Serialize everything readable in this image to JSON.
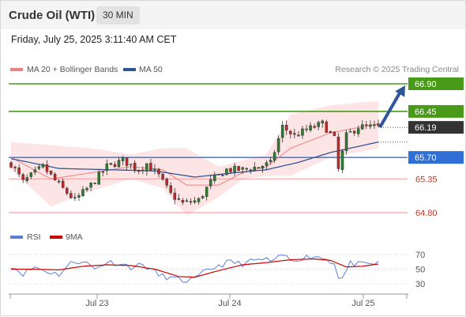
{
  "header": {
    "title": "Crude Oil (WTI)",
    "timeframe": "30 MIN",
    "timestamp": "Friday, July 25, 2025 3:11:40 AM CET"
  },
  "legend": {
    "ma20_bb": "MA 20 + Bollinger Bands",
    "ma50": "MA 50",
    "credit": "Research © 2025 Trading Central",
    "rsi": "RSI",
    "rsi_ma": "9MA"
  },
  "colors": {
    "up": "#2e7d32",
    "down": "#c62828",
    "bollinger_fill": "#fde0e0",
    "ma20": "#f08080",
    "ma50": "#2f5597",
    "resistance": "#4a9a1a",
    "pivot": "#2f6fd6",
    "support": "#f4a3a3",
    "arrow": "#2f5597",
    "last_price": "#333333",
    "rsi": "#5b7fd6",
    "rsi_ma": "#cc0000"
  },
  "chart_data": [
    {
      "type": "candlestick",
      "title": "Crude Oil (WTI)",
      "timeframe": "30 MIN",
      "x_tick_labels": [
        "Jul 23",
        "Jul 24",
        "Jul 25"
      ],
      "ylim": [
        64.6,
        67.1
      ],
      "levels": [
        {
          "label": "66.90",
          "value": 66.9,
          "kind": "resistance"
        },
        {
          "label": "66.45",
          "value": 66.45,
          "kind": "resistance"
        },
        {
          "label": "66.19",
          "value": 66.19,
          "kind": "last"
        },
        {
          "label": "65.70",
          "value": 65.7,
          "kind": "pivot"
        },
        {
          "label": "65.35",
          "value": 65.35,
          "kind": "support"
        },
        {
          "label": "64.80",
          "value": 64.8,
          "kind": "support"
        }
      ],
      "anchors": [
        {
          "i": 0,
          "p": 65.6
        },
        {
          "i": 3,
          "p": 65.3
        },
        {
          "i": 8,
          "p": 65.55
        },
        {
          "i": 12,
          "p": 65.25
        },
        {
          "i": 16,
          "p": 65.0
        },
        {
          "i": 20,
          "p": 65.25
        },
        {
          "i": 24,
          "p": 65.55
        },
        {
          "i": 28,
          "p": 65.65
        },
        {
          "i": 32,
          "p": 65.5
        },
        {
          "i": 34,
          "p": 65.6
        },
        {
          "i": 37,
          "p": 65.4
        },
        {
          "i": 40,
          "p": 65.1
        },
        {
          "i": 43,
          "p": 64.95
        },
        {
          "i": 47,
          "p": 65.0
        },
        {
          "i": 50,
          "p": 65.3
        },
        {
          "i": 54,
          "p": 65.5
        },
        {
          "i": 58,
          "p": 65.5
        },
        {
          "i": 62,
          "p": 65.55
        },
        {
          "i": 65,
          "p": 65.6
        },
        {
          "i": 68,
          "p": 66.2
        },
        {
          "i": 71,
          "p": 66.05
        },
        {
          "i": 74,
          "p": 66.15
        },
        {
          "i": 78,
          "p": 66.25
        },
        {
          "i": 81,
          "p": 66.0
        },
        {
          "i": 82,
          "p": 65.5
        },
        {
          "i": 84,
          "p": 66.05
        },
        {
          "i": 87,
          "p": 66.2
        },
        {
          "i": 92,
          "p": 66.19
        }
      ],
      "bollinger": {
        "upper": [
          {
            "i": 0,
            "p": 65.95
          },
          {
            "i": 10,
            "p": 65.9
          },
          {
            "i": 20,
            "p": 65.85
          },
          {
            "i": 30,
            "p": 65.75
          },
          {
            "i": 38,
            "p": 65.85
          },
          {
            "i": 44,
            "p": 65.85
          },
          {
            "i": 52,
            "p": 65.55
          },
          {
            "i": 58,
            "p": 65.65
          },
          {
            "i": 64,
            "p": 65.75
          },
          {
            "i": 70,
            "p": 66.4
          },
          {
            "i": 80,
            "p": 66.55
          },
          {
            "i": 92,
            "p": 66.62
          }
        ],
        "lower": [
          {
            "i": 0,
            "p": 65.5
          },
          {
            "i": 10,
            "p": 64.9
          },
          {
            "i": 20,
            "p": 65.15
          },
          {
            "i": 30,
            "p": 65.35
          },
          {
            "i": 38,
            "p": 65.2
          },
          {
            "i": 44,
            "p": 64.75
          },
          {
            "i": 52,
            "p": 65.05
          },
          {
            "i": 58,
            "p": 65.35
          },
          {
            "i": 64,
            "p": 65.4
          },
          {
            "i": 70,
            "p": 65.4
          },
          {
            "i": 80,
            "p": 65.7
          },
          {
            "i": 92,
            "p": 65.85
          }
        ],
        "ma20": [
          {
            "i": 0,
            "p": 65.7
          },
          {
            "i": 10,
            "p": 65.35
          },
          {
            "i": 20,
            "p": 65.45
          },
          {
            "i": 30,
            "p": 65.55
          },
          {
            "i": 38,
            "p": 65.5
          },
          {
            "i": 44,
            "p": 65.25
          },
          {
            "i": 52,
            "p": 65.25
          },
          {
            "i": 58,
            "p": 65.45
          },
          {
            "i": 64,
            "p": 65.55
          },
          {
            "i": 70,
            "p": 65.85
          },
          {
            "i": 80,
            "p": 66.1
          },
          {
            "i": 92,
            "p": 66.25
          }
        ]
      },
      "ma50": [
        {
          "i": 0,
          "p": 65.68
        },
        {
          "i": 12,
          "p": 65.52
        },
        {
          "i": 24,
          "p": 65.5
        },
        {
          "i": 36,
          "p": 65.48
        },
        {
          "i": 46,
          "p": 65.38
        },
        {
          "i": 56,
          "p": 65.45
        },
        {
          "i": 64,
          "p": 65.5
        },
        {
          "i": 72,
          "p": 65.62
        },
        {
          "i": 80,
          "p": 65.78
        },
        {
          "i": 92,
          "p": 65.95
        }
      ],
      "forecast_arrow": {
        "from": 66.19,
        "to": 66.9
      }
    },
    {
      "type": "line",
      "title": "RSI",
      "ylim": [
        20,
        80
      ],
      "y_tick_labels": [
        "70",
        "50",
        "30"
      ],
      "series": [
        {
          "name": "RSI",
          "points": [
            {
              "i": 0,
              "v": 55
            },
            {
              "i": 3,
              "v": 44
            },
            {
              "i": 6,
              "v": 53
            },
            {
              "i": 9,
              "v": 47
            },
            {
              "i": 12,
              "v": 43
            },
            {
              "i": 15,
              "v": 58
            },
            {
              "i": 18,
              "v": 62
            },
            {
              "i": 21,
              "v": 50
            },
            {
              "i": 24,
              "v": 60
            },
            {
              "i": 27,
              "v": 58
            },
            {
              "i": 30,
              "v": 53
            },
            {
              "i": 33,
              "v": 56
            },
            {
              "i": 35,
              "v": 50
            },
            {
              "i": 37,
              "v": 42
            },
            {
              "i": 40,
              "v": 38
            },
            {
              "i": 43,
              "v": 34
            },
            {
              "i": 46,
              "v": 36
            },
            {
              "i": 49,
              "v": 48
            },
            {
              "i": 52,
              "v": 55
            },
            {
              "i": 55,
              "v": 60
            },
            {
              "i": 58,
              "v": 57
            },
            {
              "i": 61,
              "v": 62
            },
            {
              "i": 64,
              "v": 63
            },
            {
              "i": 66,
              "v": 60
            },
            {
              "i": 68,
              "v": 70
            },
            {
              "i": 70,
              "v": 62
            },
            {
              "i": 73,
              "v": 66
            },
            {
              "i": 76,
              "v": 68
            },
            {
              "i": 79,
              "v": 64
            },
            {
              "i": 81,
              "v": 58
            },
            {
              "i": 82,
              "v": 40
            },
            {
              "i": 83,
              "v": 38
            },
            {
              "i": 85,
              "v": 58
            },
            {
              "i": 88,
              "v": 56
            },
            {
              "i": 92,
              "v": 58
            }
          ]
        },
        {
          "name": "9MA",
          "points": [
            {
              "i": 0,
              "v": 50
            },
            {
              "i": 6,
              "v": 50
            },
            {
              "i": 12,
              "v": 49
            },
            {
              "i": 18,
              "v": 54
            },
            {
              "i": 24,
              "v": 56
            },
            {
              "i": 30,
              "v": 55
            },
            {
              "i": 36,
              "v": 50
            },
            {
              "i": 42,
              "v": 40
            },
            {
              "i": 46,
              "v": 39
            },
            {
              "i": 52,
              "v": 48
            },
            {
              "i": 58,
              "v": 56
            },
            {
              "i": 64,
              "v": 59
            },
            {
              "i": 70,
              "v": 63
            },
            {
              "i": 76,
              "v": 64
            },
            {
              "i": 80,
              "v": 62
            },
            {
              "i": 84,
              "v": 53
            },
            {
              "i": 88,
              "v": 54
            },
            {
              "i": 92,
              "v": 57
            }
          ]
        }
      ]
    }
  ]
}
